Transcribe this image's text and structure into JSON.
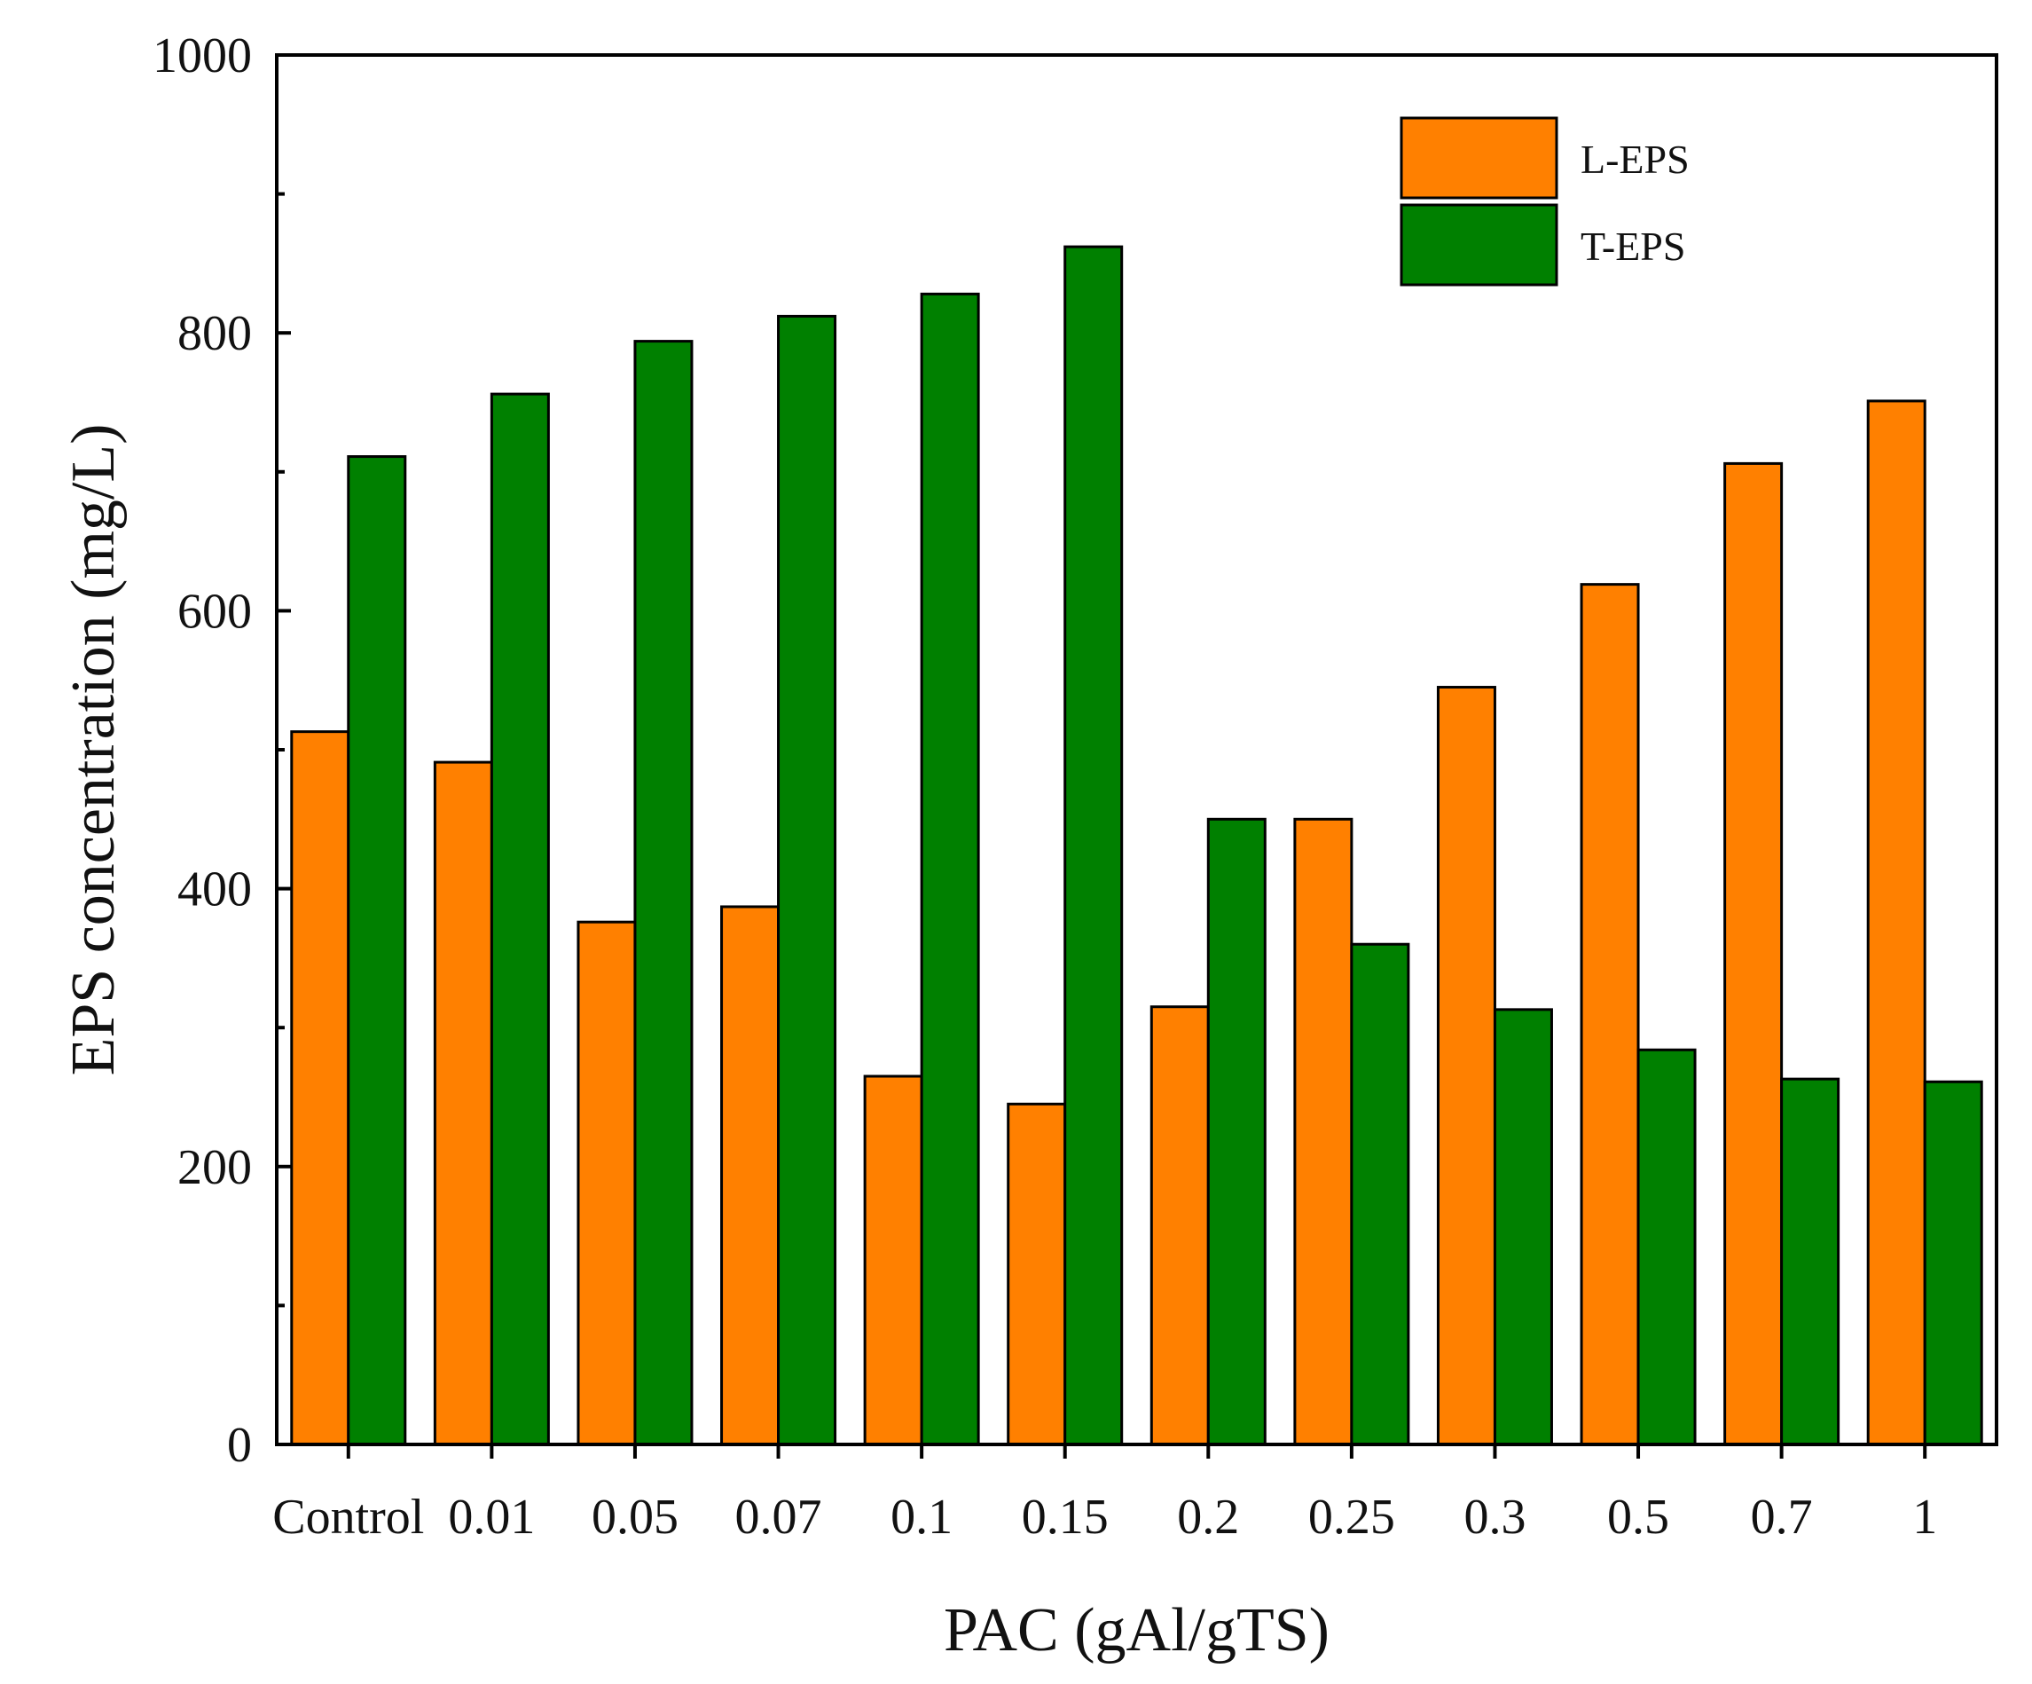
{
  "chart_data": {
    "type": "bar",
    "title": "",
    "xlabel": "PAC (gAl/gTS)",
    "ylabel": "EPS concentration (mg/L)",
    "categories": [
      "Control",
      "0.01",
      "0.05",
      "0.07",
      "0.1",
      "0.15",
      "0.2",
      "0.25",
      "0.3",
      "0.5",
      "0.7",
      "1"
    ],
    "ylim": [
      0,
      1000
    ],
    "yticks": [
      0,
      200,
      400,
      600,
      800,
      1000
    ],
    "legend_position": "top-right",
    "series": [
      {
        "name": "L-EPS",
        "color": "#FF8000",
        "values": [
          513,
          491,
          376,
          387,
          265,
          245,
          315,
          450,
          545,
          619,
          706,
          751
        ]
      },
      {
        "name": "T-EPS",
        "color": "#008000",
        "values": [
          711,
          756,
          794,
          812,
          828,
          862,
          450,
          360,
          313,
          284,
          263,
          261
        ]
      }
    ]
  }
}
